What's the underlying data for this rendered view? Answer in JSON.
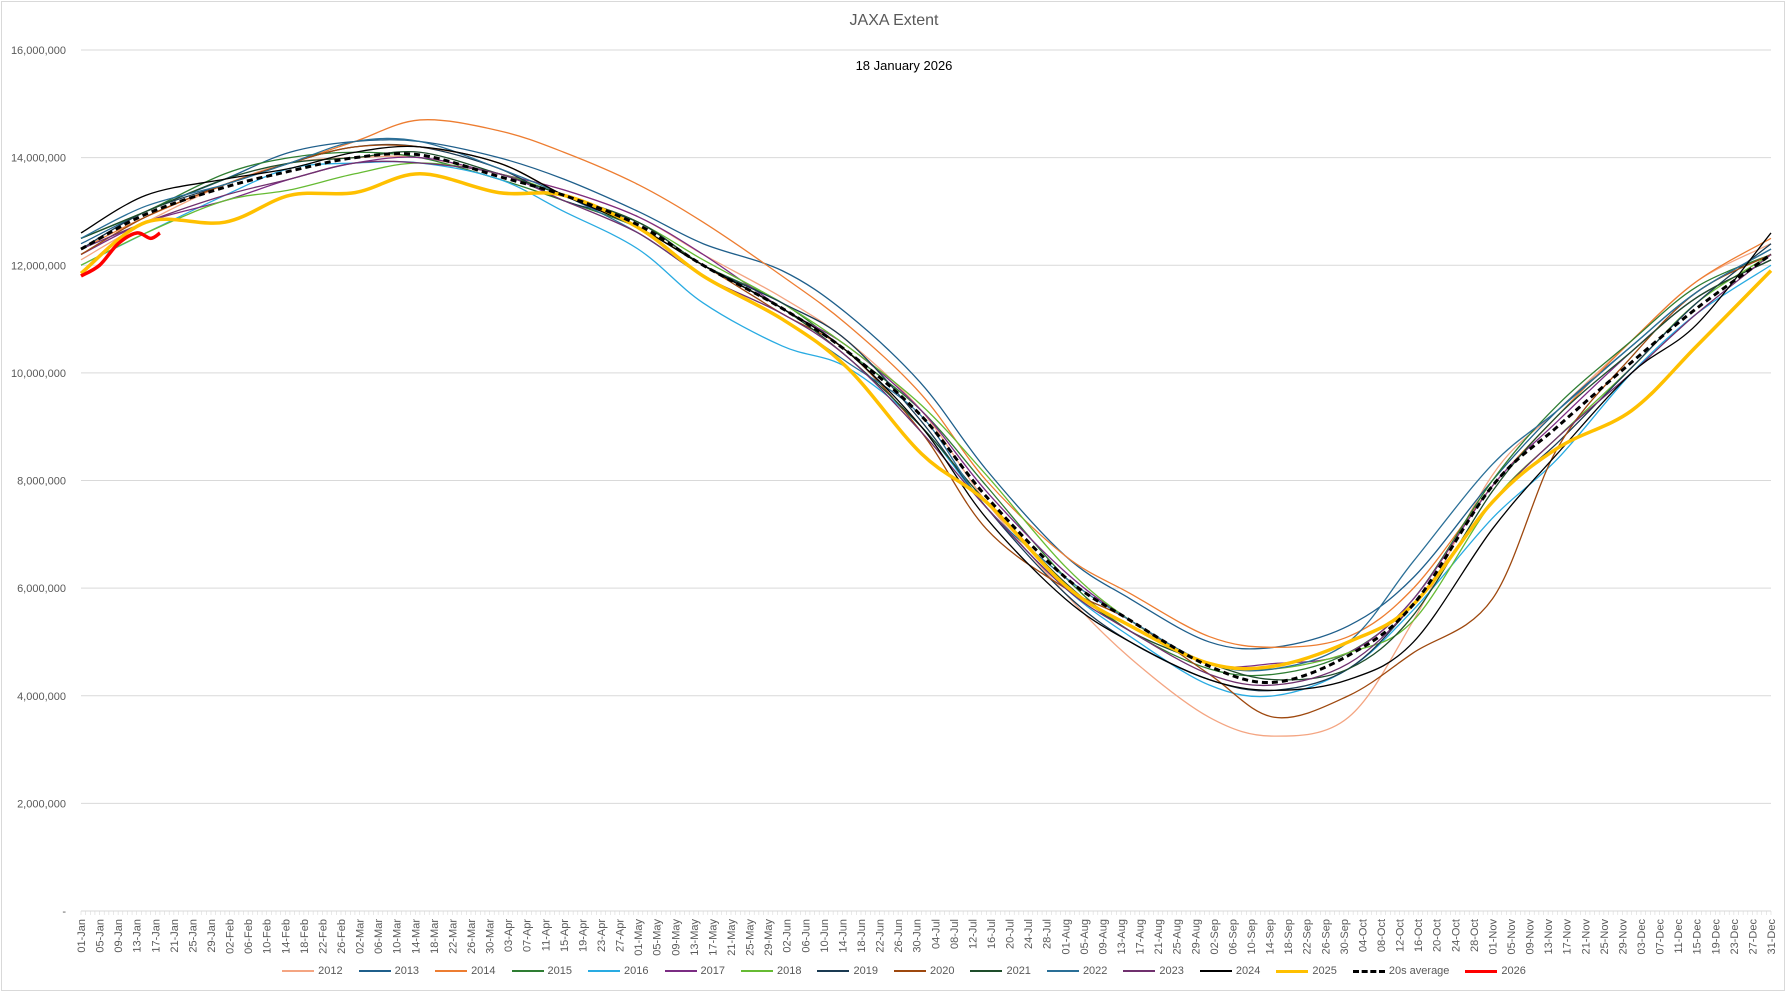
{
  "chart_data": {
    "type": "line",
    "title": "JAXA Extent",
    "subtitle": "18 January 2026",
    "xlabel": "",
    "ylabel": "",
    "value_scale": 1000000,
    "ylim": [
      0,
      16000000
    ],
    "yticks": [
      0,
      2000000,
      4000000,
      6000000,
      8000000,
      10000000,
      12000000,
      14000000,
      16000000
    ],
    "ytick_labels": [
      "-",
      "2,000,000",
      "4,000,000",
      "6,000,000",
      "8,000,000",
      "10,000,000",
      "12,000,000",
      "14,000,000",
      "16,000,000"
    ],
    "grid": true,
    "legend_position": "bottom",
    "days_in_axis": 365,
    "x_tick_labels": [
      "01-Jan",
      "05-Jan",
      "09-Jan",
      "13-Jan",
      "17-Jan",
      "21-Jan",
      "25-Jan",
      "29-Jan",
      "02-Feb",
      "06-Feb",
      "10-Feb",
      "14-Feb",
      "18-Feb",
      "22-Feb",
      "26-Feb",
      "02-Mar",
      "06-Mar",
      "10-Mar",
      "14-Mar",
      "18-Mar",
      "22-Mar",
      "26-Mar",
      "30-Mar",
      "03-Apr",
      "07-Apr",
      "11-Apr",
      "15-Apr",
      "19-Apr",
      "23-Apr",
      "27-Apr",
      "01-May",
      "05-May",
      "09-May",
      "13-May",
      "17-May",
      "21-May",
      "25-May",
      "29-May",
      "02-Jun",
      "06-Jun",
      "10-Jun",
      "14-Jun",
      "18-Jun",
      "22-Jun",
      "26-Jun",
      "30-Jun",
      "04-Jul",
      "08-Jul",
      "12-Jul",
      "16-Jul",
      "20-Jul",
      "24-Jul",
      "28-Jul",
      "01-Aug",
      "05-Aug",
      "09-Aug",
      "13-Aug",
      "17-Aug",
      "21-Aug",
      "25-Aug",
      "29-Aug",
      "02-Sep",
      "06-Sep",
      "10-Sep",
      "14-Sep",
      "18-Sep",
      "22-Sep",
      "26-Sep",
      "30-Sep",
      "04-Oct",
      "08-Oct",
      "12-Oct",
      "16-Oct",
      "20-Oct",
      "24-Oct",
      "28-Oct",
      "01-Nov",
      "05-Nov",
      "09-Nov",
      "13-Nov",
      "17-Nov",
      "21-Nov",
      "25-Nov",
      "29-Nov",
      "03-Dec",
      "07-Dec",
      "11-Dec",
      "15-Dec",
      "19-Dec",
      "23-Dec",
      "27-Dec",
      "31-Dec"
    ],
    "x_day_index": [
      0,
      14,
      31,
      45,
      59,
      73,
      90,
      104,
      120,
      134,
      151,
      165,
      181,
      195,
      212,
      226,
      243,
      257,
      273,
      287,
      304,
      318,
      334,
      348,
      364
    ],
    "series": [
      {
        "name": "2012",
        "color": "#f4a582",
        "width": 1.3,
        "values": [
          12.1,
          12.8,
          13.5,
          13.9,
          14.0,
          14.0,
          13.7,
          13.4,
          12.9,
          12.2,
          11.4,
          10.6,
          9.3,
          7.6,
          5.9,
          4.7,
          3.6,
          3.25,
          3.6,
          5.4,
          8.1,
          9.3,
          10.6,
          11.7,
          12.4
        ]
      },
      {
        "name": "2013",
        "color": "#1f5f8b",
        "width": 1.3,
        "values": [
          12.4,
          13.0,
          13.6,
          14.1,
          14.3,
          14.3,
          14.0,
          13.6,
          13.0,
          12.4,
          11.9,
          11.1,
          9.8,
          8.2,
          6.6,
          5.8,
          5.0,
          4.9,
          5.3,
          6.2,
          8.0,
          9.3,
          10.5,
          11.5,
          12.3
        ]
      },
      {
        "name": "2014",
        "color": "#ed7d31",
        "width": 1.3,
        "values": [
          12.3,
          12.9,
          13.5,
          13.9,
          14.3,
          14.7,
          14.5,
          14.1,
          13.5,
          12.8,
          11.8,
          10.9,
          9.6,
          8.0,
          6.6,
          5.9,
          5.1,
          4.9,
          5.1,
          6.0,
          7.9,
          9.2,
          10.6,
          11.7,
          12.5
        ]
      },
      {
        "name": "2015",
        "color": "#2e7d32",
        "width": 1.3,
        "values": [
          12.5,
          13.0,
          13.7,
          14.0,
          14.1,
          14.0,
          13.6,
          13.2,
          12.7,
          12.0,
          11.3,
          10.4,
          9.3,
          7.9,
          6.2,
          5.2,
          4.5,
          4.4,
          4.8,
          5.8,
          8.0,
          9.4,
          10.6,
          11.6,
          12.2
        ]
      },
      {
        "name": "2016",
        "color": "#29abe2",
        "width": 1.3,
        "values": [
          12.0,
          12.6,
          13.3,
          13.8,
          13.9,
          13.9,
          13.6,
          13.0,
          12.3,
          11.3,
          10.5,
          10.1,
          9.0,
          7.5,
          6.0,
          5.1,
          4.2,
          4.0,
          4.5,
          5.6,
          7.3,
          8.4,
          10.0,
          11.1,
          12.0
        ]
      },
      {
        "name": "2017",
        "color": "#7b2c83",
        "width": 1.3,
        "values": [
          12.2,
          12.8,
          13.2,
          13.6,
          13.9,
          14.0,
          13.7,
          13.4,
          12.9,
          12.2,
          11.2,
          10.5,
          9.3,
          7.8,
          6.3,
          5.4,
          4.6,
          4.6,
          4.8,
          5.8,
          7.9,
          9.1,
          10.4,
          11.4,
          12.1
        ]
      },
      {
        "name": "2018",
        "color": "#66bb33",
        "width": 1.3,
        "values": [
          12.0,
          12.6,
          13.2,
          13.4,
          13.7,
          13.9,
          13.7,
          13.3,
          12.8,
          12.1,
          11.3,
          10.5,
          9.4,
          8.1,
          6.4,
          5.4,
          4.6,
          4.5,
          4.8,
          5.4,
          7.6,
          8.8,
          10.1,
          11.3,
          12.2
        ]
      },
      {
        "name": "2019",
        "color": "#1a3a52",
        "width": 1.3,
        "values": [
          12.3,
          13.0,
          13.5,
          13.9,
          14.2,
          14.2,
          13.8,
          13.2,
          12.8,
          12.0,
          11.3,
          10.6,
          9.1,
          7.5,
          5.9,
          5.0,
          4.3,
          4.1,
          4.5,
          5.7,
          7.6,
          8.7,
          10.1,
          11.3,
          12.4
        ]
      },
      {
        "name": "2020",
        "color": "#9e480e",
        "width": 1.3,
        "values": [
          12.2,
          12.9,
          13.5,
          13.9,
          14.2,
          14.2,
          13.9,
          13.3,
          12.7,
          12.0,
          11.1,
          10.4,
          8.9,
          7.1,
          6.0,
          5.4,
          4.4,
          3.6,
          4.0,
          4.8,
          5.8,
          8.6,
          10.3,
          11.5,
          12.2
        ]
      },
      {
        "name": "2021",
        "color": "#1e4d2b",
        "width": 1.3,
        "values": [
          12.5,
          13.0,
          13.6,
          13.9,
          14.0,
          14.1,
          13.7,
          13.3,
          12.8,
          12.0,
          11.2,
          10.3,
          9.0,
          7.6,
          6.1,
          5.2,
          4.6,
          4.3,
          4.5,
          5.5,
          7.8,
          9.2,
          10.4,
          11.4,
          12.1
        ]
      },
      {
        "name": "2022",
        "color": "#2a6f97",
        "width": 1.3,
        "values": [
          12.5,
          13.1,
          13.5,
          13.9,
          14.3,
          14.3,
          13.8,
          13.3,
          12.6,
          11.8,
          11.0,
          10.2,
          9.2,
          7.5,
          6.2,
          5.4,
          4.6,
          4.5,
          5.0,
          6.5,
          8.3,
          9.3,
          10.5,
          11.5,
          12.3
        ]
      },
      {
        "name": "2023",
        "color": "#70306e",
        "width": 1.3,
        "values": [
          12.3,
          12.8,
          13.3,
          13.6,
          13.9,
          13.9,
          13.7,
          13.2,
          12.6,
          11.8,
          11.1,
          10.3,
          8.9,
          7.5,
          6.0,
          5.2,
          4.4,
          4.2,
          4.6,
          5.7,
          7.6,
          8.8,
          10.0,
          11.1,
          12.2
        ]
      },
      {
        "name": "2024",
        "color": "#000000",
        "width": 1.3,
        "values": [
          12.6,
          13.3,
          13.6,
          13.8,
          14.1,
          14.2,
          13.9,
          13.3,
          12.7,
          12.0,
          11.2,
          10.4,
          9.0,
          7.3,
          5.8,
          5.0,
          4.3,
          4.1,
          4.3,
          5.0,
          7.1,
          8.5,
          10.0,
          10.9,
          12.6
        ]
      },
      {
        "name": "2025",
        "color": "#ffc000",
        "width": 3.5,
        "values": [
          11.85,
          12.8,
          12.8,
          13.3,
          13.35,
          13.7,
          13.35,
          13.3,
          12.7,
          11.8,
          11.0,
          10.1,
          8.5,
          7.6,
          6.05,
          5.3,
          4.6,
          4.55,
          5.0,
          5.7,
          7.6,
          8.6,
          9.3,
          10.5,
          11.9
        ]
      },
      {
        "name": "20s average",
        "color": "#000000",
        "width": 3,
        "dashed": true,
        "values": [
          12.3,
          12.95,
          13.45,
          13.75,
          14.0,
          14.05,
          13.65,
          13.3,
          12.75,
          12.0,
          11.2,
          10.4,
          9.2,
          7.7,
          6.2,
          5.4,
          4.55,
          4.25,
          4.75,
          5.7,
          7.9,
          9.0,
          10.2,
          11.2,
          12.2
        ]
      },
      {
        "name": "2026",
        "color": "#ff0000",
        "width": 3.5,
        "x_day_index": [
          0,
          4,
          8,
          12,
          15,
          17
        ],
        "values": [
          11.8,
          12.0,
          12.4,
          12.6,
          12.5,
          12.6
        ]
      }
    ]
  }
}
